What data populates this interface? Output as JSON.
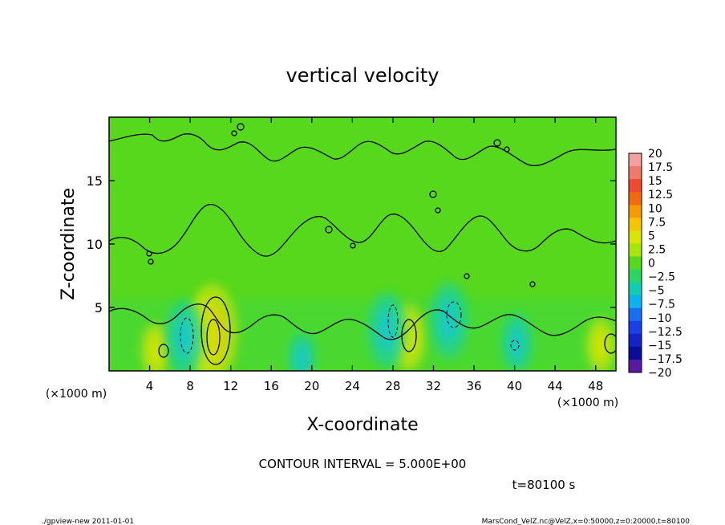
{
  "chart_data": {
    "type": "heatmap",
    "title": "vertical velocity",
    "xlabel": "X-coordinate",
    "ylabel": "Z-coordinate",
    "x_unit_left": "(×1000 m)",
    "x_unit_right": "(×1000 m)",
    "xlim": [
      0,
      50
    ],
    "ylim": [
      0,
      20
    ],
    "x_ticks": [
      4,
      8,
      12,
      16,
      20,
      24,
      28,
      32,
      36,
      40,
      44,
      48
    ],
    "y_ticks": [
      5,
      10,
      15
    ],
    "colorbar_levels": [
      20,
      17.5,
      15,
      12.5,
      10,
      7.5,
      5,
      2.5,
      0,
      -2.5,
      -5,
      -7.5,
      -10,
      -12.5,
      -15,
      -17.5,
      -20
    ],
    "colorbar_labels": [
      "20",
      "17.5",
      "15",
      "12.5",
      "10",
      "7.5",
      "5",
      "2.5",
      "0",
      "−2.5",
      "−5",
      "−7.5",
      "−10",
      "−12.5",
      "−15",
      "−17.5",
      "−20"
    ],
    "colorbar_colors": [
      "#f2a0a0",
      "#f07a6a",
      "#ee4a32",
      "#f26a10",
      "#f79a00",
      "#f3c600",
      "#d9e600",
      "#a6e60a",
      "#56d81c",
      "#2ad660",
      "#10cfb0",
      "#0cb4ee",
      "#1a6ff0",
      "#1a40e8",
      "#1424c4",
      "#0c0c9a",
      "#5a1aa0"
    ],
    "contour_interval": "CONTOUR INTERVAL = 5.000E+00",
    "features": [
      {
        "x": 10.2,
        "z": 3.0,
        "w": 7.8
      },
      {
        "x": 9.6,
        "z": 2.8,
        "w": 5.0
      },
      {
        "x": 29.5,
        "z": 2.6,
        "w": 4.0
      },
      {
        "x": 4.6,
        "z": 1.6,
        "w": 2.5
      },
      {
        "x": 48.5,
        "z": 2.0,
        "w": 2.5
      },
      {
        "x": 7.4,
        "z": 2.6,
        "w": -5.0
      },
      {
        "x": 27.4,
        "z": 3.2,
        "w": -5.0
      },
      {
        "x": 33.5,
        "z": 4.0,
        "w": -5.0
      },
      {
        "x": 40.2,
        "z": 2.2,
        "w": -3.0
      },
      {
        "x": 19.0,
        "z": 1.0,
        "w": -2.0
      }
    ]
  },
  "annotations": {
    "time": "t=80100 s",
    "footer_left": "./gpview-new   2011-01-01",
    "footer_right": "MarsCond_VelZ.nc@VelZ,x=0:50000,z=0:20000,t=80100"
  }
}
